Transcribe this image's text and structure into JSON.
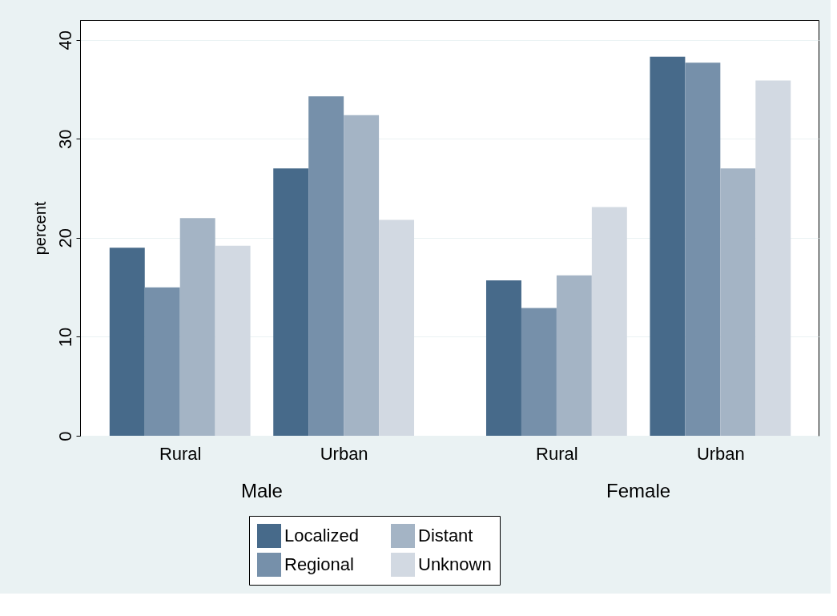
{
  "chart_data": {
    "type": "bar",
    "ylabel": "percent",
    "categories": [
      "Rural",
      "Urban",
      "Rural",
      "Urban"
    ],
    "annotations": [
      "Male",
      "Female"
    ],
    "series": [
      {
        "name": "Localized",
        "color": "#476a8a",
        "values": [
          19.0,
          27.0,
          15.7,
          38.3
        ]
      },
      {
        "name": "Regional",
        "color": "#7690aa",
        "values": [
          15.0,
          34.3,
          12.9,
          37.7
        ]
      },
      {
        "name": "Distant",
        "color": "#a4b4c5",
        "values": [
          22.0,
          32.4,
          16.2,
          27.0
        ]
      },
      {
        "name": "Unknown",
        "color": "#d2d9e2",
        "values": [
          19.2,
          21.8,
          23.1,
          35.9
        ]
      }
    ],
    "ylim": [
      0,
      42
    ],
    "yticks": [
      0,
      10,
      20,
      30,
      40
    ],
    "grid": "y",
    "legend": "bottom"
  }
}
